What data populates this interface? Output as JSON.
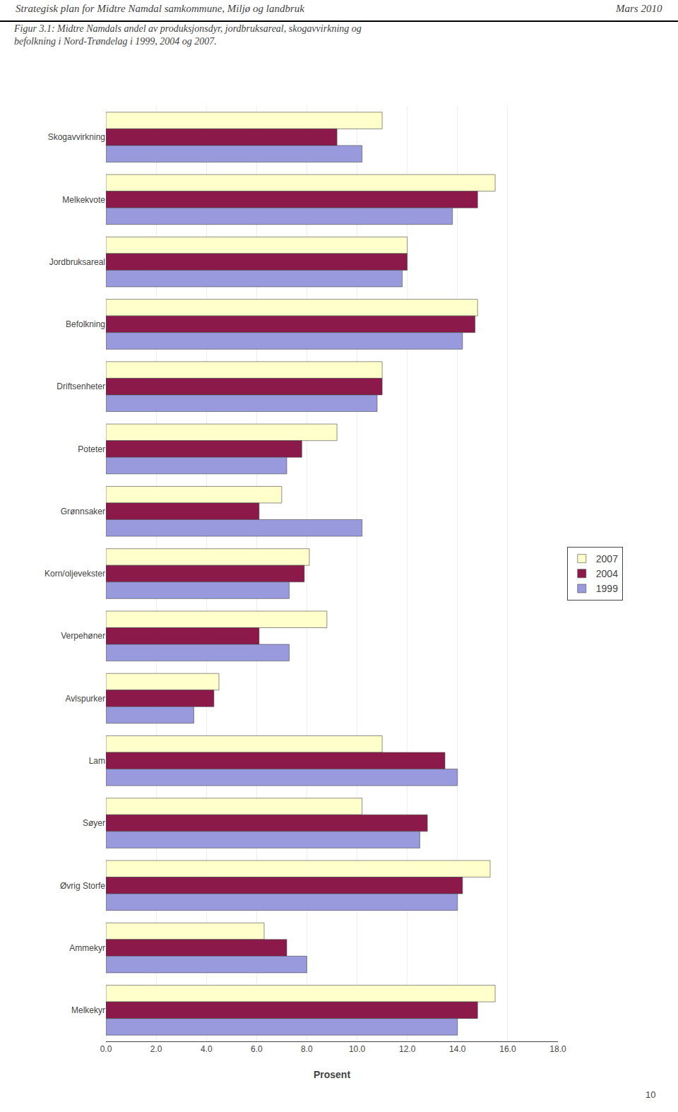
{
  "chart_data": {
    "type": "bar",
    "orientation": "horizontal",
    "title": "Figur 3.1: Midtre Namdals andel av produksjonsdyr, jordbruksareal, skogavvirkning og\nbefolkning i Nord-Trøndelag i 1999, 2004 og 2007.",
    "annotations": [
      "Strategisk plan for Midtre Namdal samkommune, Miljø og landbruk",
      "Mars 2010",
      "10"
    ],
    "categories": [
      "Skogavvirkning",
      "Melkekvote",
      "Jordbruksareal",
      "Befolkning",
      "Driftsenheter",
      "Poteter",
      "Grønnsaker",
      "Korn/oljevekster",
      "Verpehøner",
      "Avlspurker",
      "Lam",
      "Søyer",
      "Øvrig Storfe",
      "Ammekyr",
      "Melkekyr"
    ],
    "series": [
      {
        "name": "2007",
        "color": "#FFFFCC",
        "values": [
          11.0,
          15.5,
          12.0,
          14.8,
          11.0,
          9.2,
          7.0,
          8.1,
          8.8,
          4.5,
          11.0,
          10.2,
          15.3,
          6.3,
          15.5
        ]
      },
      {
        "name": "2004",
        "color": "#8B1A4A",
        "values": [
          9.2,
          14.8,
          12.0,
          14.7,
          11.0,
          7.8,
          6.1,
          7.9,
          6.1,
          4.3,
          13.5,
          12.8,
          14.2,
          7.2,
          14.8
        ]
      },
      {
        "name": "1999",
        "color": "#9999DD",
        "values": [
          10.2,
          13.8,
          11.8,
          14.2,
          10.8,
          7.2,
          10.2,
          7.3,
          7.3,
          3.5,
          14.0,
          12.5,
          14.0,
          8.0,
          14.0
        ]
      }
    ],
    "x_label": "Prosent",
    "xlim": [
      0,
      18.0
    ],
    "xticks": [
      {
        "value": 0.0,
        "label": "0.0"
      },
      {
        "value": 2.0,
        "label": "2.0"
      },
      {
        "value": 4.0,
        "label": "4.0"
      },
      {
        "value": 6.0,
        "label": "6.0"
      },
      {
        "value": 8.0,
        "label": "8.0"
      },
      {
        "value": 10.0,
        "label": "10.0"
      },
      {
        "value": 12.0,
        "label": "12.0"
      },
      {
        "value": 14.0,
        "label": "14.0"
      },
      {
        "value": 16.0,
        "label": "16.0"
      },
      {
        "value": 18.0,
        "label": "18.0"
      }
    ],
    "grid": true,
    "legend": "right"
  }
}
